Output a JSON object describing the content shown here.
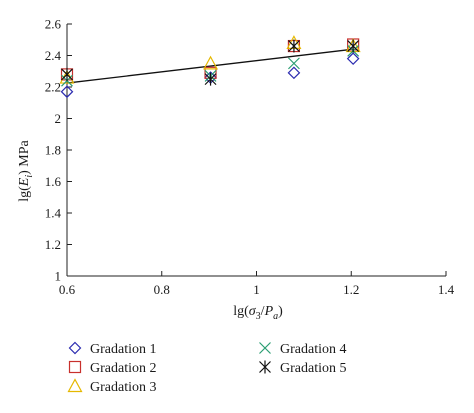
{
  "chart_data": {
    "type": "scatter",
    "xlabel_prefix": "lg(",
    "xlabel_var1": "σ",
    "xlabel_sub1": "3",
    "xlabel_slash": "/",
    "xlabel_var2": "P",
    "xlabel_sub2": "a",
    "xlabel_suffix": ")",
    "ylabel_prefix": "lg(",
    "ylabel_var": "E",
    "ylabel_sub": "i",
    "ylabel_suffix": ") MPa",
    "xlim": [
      0.6,
      1.4
    ],
    "ylim": [
      1.0,
      2.6
    ],
    "xticks": [
      0.6,
      0.8,
      1.0,
      1.2,
      1.4
    ],
    "xtick_labels": [
      "0.6",
      "0.8",
      "1",
      "1.2",
      "1.4"
    ],
    "yticks": [
      1.0,
      1.2,
      1.4,
      1.6,
      1.8,
      2.0,
      2.2,
      2.4,
      2.6
    ],
    "ytick_labels": [
      "1",
      "1.2",
      "1.4",
      "1.6",
      "1.8",
      "2",
      "2.2",
      "2.4",
      "2.6"
    ],
    "grid": false,
    "legend_position": "bottom",
    "series": [
      {
        "name": "Gradation 1",
        "marker": "diamond",
        "color": "#2b2bb0",
        "x": [
          0.6,
          0.903,
          1.079,
          1.204
        ],
        "y": [
          2.17,
          2.26,
          2.29,
          2.38
        ]
      },
      {
        "name": "Gradation 2",
        "marker": "square",
        "color": "#c8302c",
        "x": [
          0.6,
          0.903,
          1.079,
          1.204
        ],
        "y": [
          2.28,
          2.29,
          2.46,
          2.47
        ]
      },
      {
        "name": "Gradation 3",
        "marker": "triangle",
        "color": "#e5b800",
        "x": [
          0.6,
          0.903,
          1.079,
          1.204
        ],
        "y": [
          2.26,
          2.35,
          2.48,
          2.46
        ]
      },
      {
        "name": "Gradation 4",
        "marker": "x",
        "color": "#2a9d72",
        "x": [
          0.6,
          0.903,
          1.079,
          1.204
        ],
        "y": [
          2.24,
          2.27,
          2.35,
          2.43
        ]
      },
      {
        "name": "Gradation 5",
        "marker": "asterisk",
        "color": "#111111",
        "x": [
          0.6,
          0.903,
          1.079,
          1.204
        ],
        "y": [
          2.28,
          2.25,
          2.46,
          2.46
        ]
      }
    ],
    "fit_line": {
      "x": [
        0.6,
        1.204
      ],
      "y": [
        2.225,
        2.44
      ],
      "color": "#111111"
    }
  }
}
